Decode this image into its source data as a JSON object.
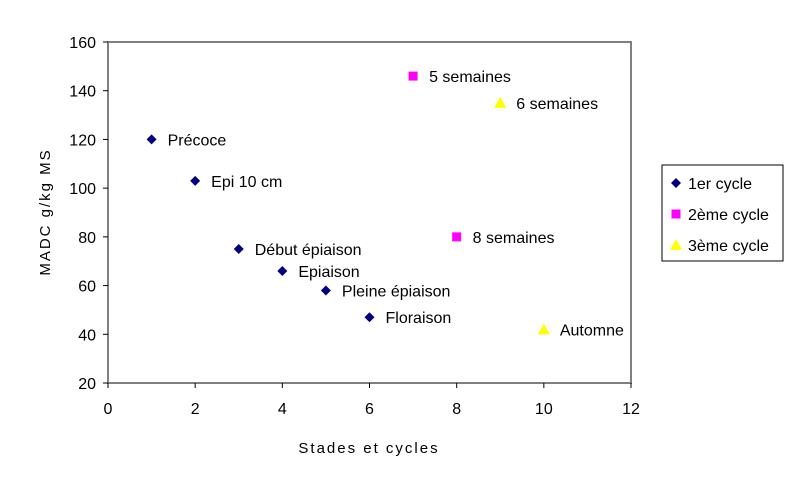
{
  "chart_data": {
    "type": "scatter",
    "title": "",
    "xlabel": "Stades et cycles",
    "ylabel": "MADC g/kg MS",
    "xlim": [
      0,
      12
    ],
    "ylim": [
      20,
      160
    ],
    "xticks": [
      0,
      2,
      4,
      6,
      8,
      10,
      12
    ],
    "yticks": [
      20,
      40,
      60,
      80,
      100,
      120,
      140,
      160
    ],
    "grid": false,
    "legend_position": "right",
    "series": [
      {
        "name": "1er cycle",
        "marker": "diamond",
        "color": "#000080",
        "points": [
          {
            "x": 1,
            "y": 120,
            "label": "Précoce"
          },
          {
            "x": 2,
            "y": 103,
            "label": "Epi 10 cm"
          },
          {
            "x": 3,
            "y": 75,
            "label": "Début épiaison"
          },
          {
            "x": 4,
            "y": 66,
            "label": "Epiaison"
          },
          {
            "x": 5,
            "y": 58,
            "label": "Pleine épiaison"
          },
          {
            "x": 6,
            "y": 47,
            "label": "Floraison"
          }
        ]
      },
      {
        "name": "2ème cycle",
        "marker": "square",
        "color": "#ff00ff",
        "points": [
          {
            "x": 7,
            "y": 146,
            "label": "5 semaines"
          },
          {
            "x": 8,
            "y": 80,
            "label": "8 semaines"
          }
        ]
      },
      {
        "name": "3ème cycle",
        "marker": "triangle",
        "color": "#ffff00",
        "points": [
          {
            "x": 9,
            "y": 135,
            "label": "6 semaines"
          },
          {
            "x": 10,
            "y": 42,
            "label": "Automne"
          }
        ]
      }
    ]
  }
}
